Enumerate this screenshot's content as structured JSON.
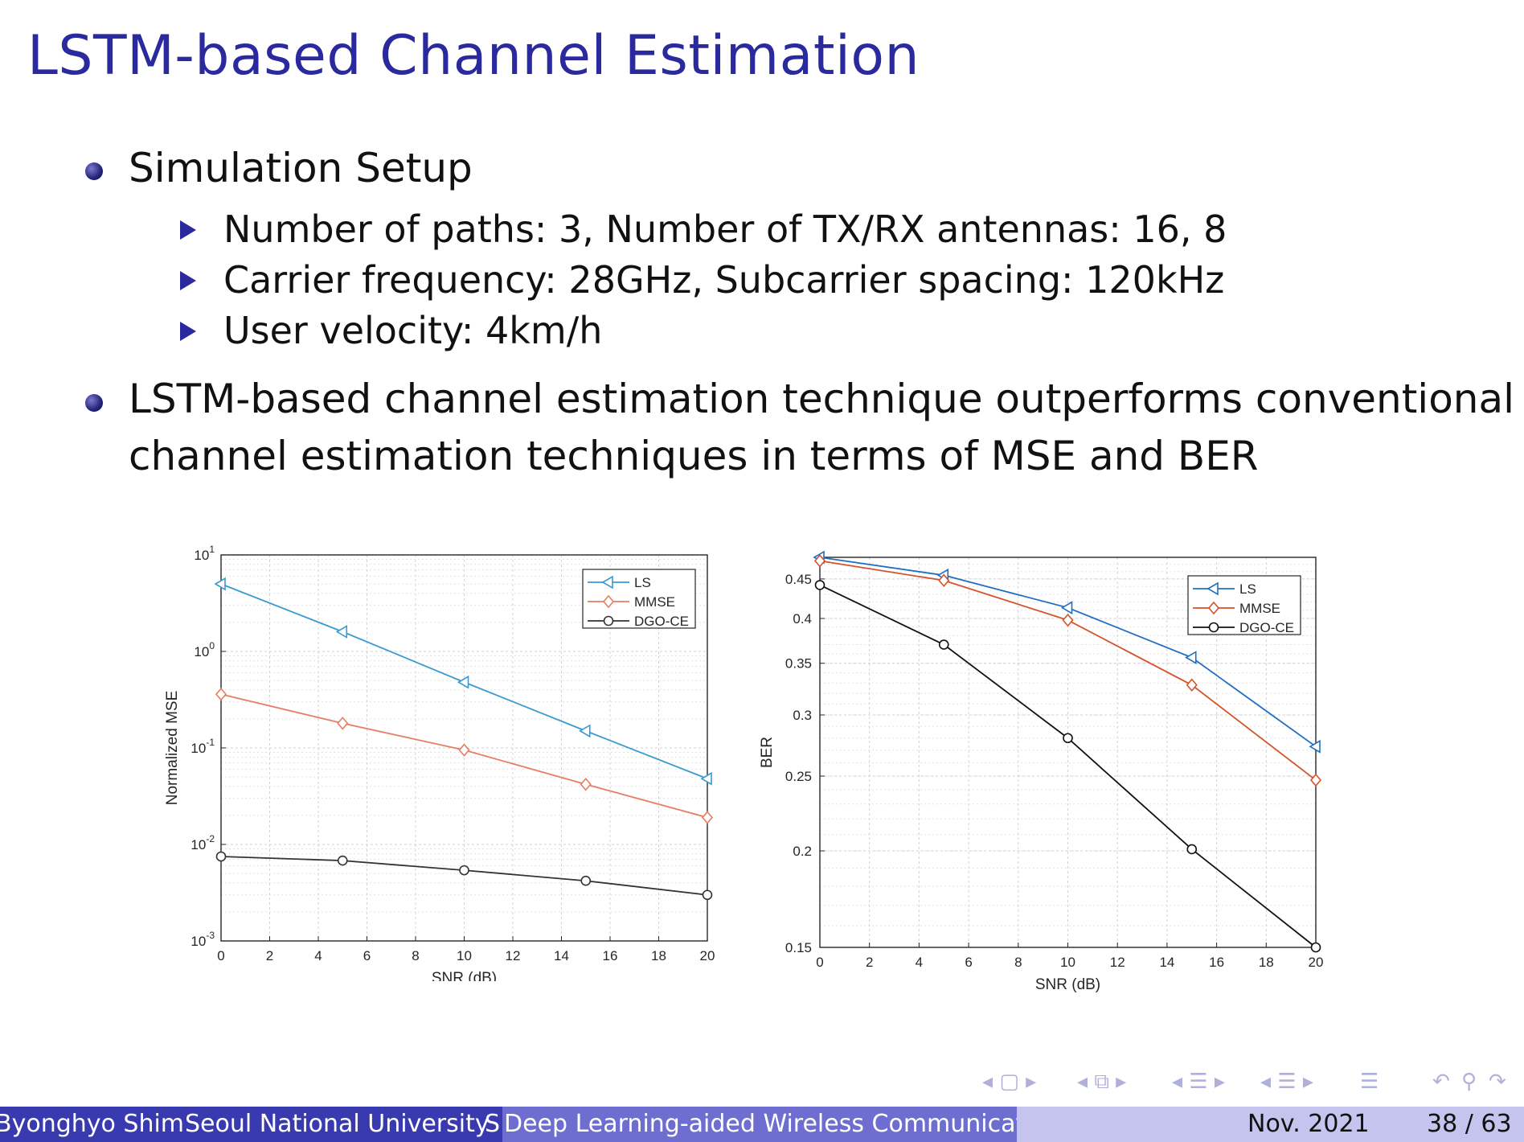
{
  "slide": {
    "title": "LSTM-based Channel Estimation",
    "bullets": [
      {
        "text": "Simulation Setup"
      },
      {
        "line1": "LSTM-based channel estimation technique outperforms conventional",
        "line2": "channel estimation techniques in terms of MSE and BER"
      }
    ],
    "subbullets": [
      "Number of paths: 3, Number of TX/RX antennas: 16, 8",
      "Carrier frequency: 28GHz, Subcarrier spacing: 120kHz",
      "User velocity: 4km/h"
    ]
  },
  "chart_data": [
    {
      "type": "line",
      "xlabel": "SNR (dB)",
      "ylabel": "Normalized MSE",
      "yscale": "log",
      "xlim": [
        0,
        20
      ],
      "ylim": [
        0.001,
        10
      ],
      "xticks": [
        "0",
        "2",
        "4",
        "6",
        "8",
        "10",
        "12",
        "14",
        "16",
        "18",
        "20"
      ],
      "yticks": [
        {
          "base": "10",
          "exp": "1"
        },
        {
          "base": "10",
          "exp": "0"
        },
        {
          "base": "10",
          "exp": "-1"
        },
        {
          "base": "10",
          "exp": "-2"
        },
        {
          "base": "10",
          "exp": "-3"
        }
      ],
      "grid": true,
      "legend": "top-right",
      "x": [
        0,
        5,
        10,
        15,
        20
      ],
      "series": [
        {
          "name": "LS",
          "color": "#3a9ad2",
          "marker": "triangle-left",
          "values": [
            5.0,
            1.6,
            0.48,
            0.15,
            0.048
          ]
        },
        {
          "name": "MMSE",
          "color": "#e57e62",
          "marker": "diamond",
          "values": [
            0.36,
            0.18,
            0.095,
            0.042,
            0.019
          ]
        },
        {
          "name": "DGO-CE",
          "color": "#333333",
          "marker": "circle",
          "values": [
            0.0075,
            0.0068,
            0.0054,
            0.0042,
            0.003
          ]
        }
      ]
    },
    {
      "type": "line",
      "xlabel": "SNR (dB)",
      "ylabel": "BER",
      "yscale": "log",
      "xlim": [
        0,
        20
      ],
      "ylim": [
        0.15,
        0.48
      ],
      "xticks": [
        "0",
        "2",
        "4",
        "6",
        "8",
        "10",
        "12",
        "14",
        "16",
        "18",
        "20"
      ],
      "yticks": [
        "0.45",
        "0.4",
        "0.35",
        "0.3",
        "0.25",
        "0.2",
        "0.15"
      ],
      "grid": true,
      "legend": "top-right",
      "x": [
        0,
        5,
        10,
        15,
        20
      ],
      "series": [
        {
          "name": "LS",
          "color": "#1f6fc0",
          "marker": "triangle-left",
          "values": [
            0.48,
            0.455,
            0.413,
            0.356,
            0.273
          ]
        },
        {
          "name": "MMSE",
          "color": "#d5532a",
          "marker": "diamond",
          "values": [
            0.475,
            0.448,
            0.398,
            0.328,
            0.247
          ]
        },
        {
          "name": "DGO-CE",
          "color": "#111111",
          "marker": "circle",
          "values": [
            0.442,
            0.37,
            0.28,
            0.201,
            0.15
          ]
        }
      ]
    }
  ],
  "footer": {
    "author": "Byonghyo Shim",
    "institute": "Seoul National University",
    "cut": "S",
    "talk_title": "Deep Learning-aided Wireless Communication",
    "date": "Nov. 2021",
    "page": "38 / 63"
  },
  "colors": {
    "title": "#2a2a9e",
    "footer_dark": "#3a3ab0",
    "footer_mid": "#6e6ed0",
    "footer_light": "#c4c4ee"
  },
  "icons": [
    "nav-frame-icon",
    "nav-subsection-icon",
    "nav-section-icon",
    "nav-list-icon",
    "nav-align-icon",
    "undo-icon",
    "search-icon"
  ]
}
